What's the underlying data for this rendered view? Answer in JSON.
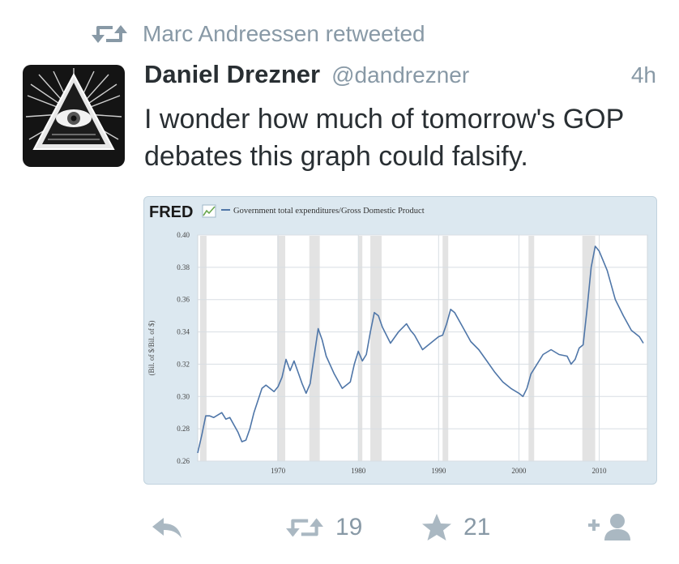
{
  "retweet_context": {
    "icon": "retweet-icon",
    "text": "Marc Andreessen retweeted"
  },
  "tweet": {
    "avatar_icon": "eye-pyramid-icon",
    "name": "Daniel Drezner",
    "handle": "@dandrezner",
    "time": "4h",
    "text": "I wonder how much of tomorrow's GOP debates this graph could falsify."
  },
  "chart": {
    "logo": "FRED",
    "legend": "Government total expenditures/Gross Domestic Product",
    "ylabel": "(Bil. of $/Bil. of $)",
    "line_color": "#4f76a8",
    "recession_color": "#e3e3e3"
  },
  "chart_data": {
    "type": "line",
    "title": "",
    "xlabel": "",
    "ylabel": "(Bil. of $/Bil. of $)",
    "xlim": [
      1960,
      2016
    ],
    "ylim": [
      0.26,
      0.4
    ],
    "x_ticks": [
      "1970",
      "1980",
      "1990",
      "2000",
      "2010"
    ],
    "y_ticks": [
      "0.40",
      "0.38",
      "0.36",
      "0.34",
      "0.32",
      "0.30",
      "0.28",
      "0.26"
    ],
    "grid": true,
    "legend_placement": "top-left",
    "recessions": [
      [
        1960.3,
        1961.1
      ],
      [
        1969.9,
        1970.9
      ],
      [
        1973.9,
        1975.2
      ],
      [
        1980.0,
        1980.5
      ],
      [
        1981.5,
        1982.9
      ],
      [
        1990.5,
        1991.2
      ],
      [
        2001.2,
        2001.9
      ],
      [
        2007.9,
        2009.5
      ]
    ],
    "series": [
      {
        "name": "Government total expenditures/Gross Domestic Product",
        "x": [
          1960.0,
          1960.5,
          1961.0,
          1961.5,
          1962.0,
          1963.0,
          1963.5,
          1964.0,
          1965.0,
          1965.5,
          1966.0,
          1966.5,
          1967.0,
          1968.0,
          1968.5,
          1969.0,
          1969.5,
          1970.0,
          1970.5,
          1971.0,
          1971.5,
          1972.0,
          1972.5,
          1973.0,
          1973.5,
          1974.0,
          1974.5,
          1975.0,
          1975.5,
          1976.0,
          1977.0,
          1978.0,
          1979.0,
          1979.5,
          1980.0,
          1980.5,
          1981.0,
          1981.5,
          1982.0,
          1982.5,
          1983.0,
          1984.0,
          1985.0,
          1986.0,
          1986.5,
          1987.0,
          1988.0,
          1989.0,
          1990.0,
          1990.5,
          1991.0,
          1991.5,
          1992.0,
          1993.0,
          1994.0,
          1995.0,
          1996.0,
          1997.0,
          1998.0,
          1999.0,
          2000.0,
          2000.5,
          2001.0,
          2001.5,
          2002.0,
          2003.0,
          2004.0,
          2005.0,
          2006.0,
          2006.5,
          2007.0,
          2007.5,
          2008.0,
          2008.5,
          2009.0,
          2009.5,
          2010.0,
          2010.5,
          2011.0,
          2012.0,
          2013.0,
          2014.0,
          2015.0,
          2015.5
        ],
        "y": [
          0.265,
          0.276,
          0.288,
          0.288,
          0.287,
          0.29,
          0.286,
          0.287,
          0.278,
          0.272,
          0.273,
          0.28,
          0.29,
          0.305,
          0.307,
          0.305,
          0.303,
          0.306,
          0.312,
          0.323,
          0.316,
          0.322,
          0.315,
          0.308,
          0.302,
          0.308,
          0.325,
          0.342,
          0.335,
          0.325,
          0.314,
          0.305,
          0.309,
          0.32,
          0.328,
          0.322,
          0.326,
          0.34,
          0.352,
          0.35,
          0.343,
          0.333,
          0.34,
          0.345,
          0.341,
          0.338,
          0.329,
          0.333,
          0.337,
          0.338,
          0.345,
          0.354,
          0.352,
          0.343,
          0.334,
          0.329,
          0.322,
          0.315,
          0.309,
          0.305,
          0.302,
          0.3,
          0.305,
          0.314,
          0.318,
          0.326,
          0.329,
          0.326,
          0.325,
          0.32,
          0.323,
          0.33,
          0.332,
          0.355,
          0.38,
          0.393,
          0.39,
          0.384,
          0.378,
          0.36,
          0.35,
          0.341,
          0.337,
          0.333
        ]
      }
    ]
  },
  "actions": {
    "reply_icon": "reply-icon",
    "retweet_icon": "retweet-icon",
    "retweet_count": "19",
    "favorite_icon": "star-icon",
    "favorite_count": "21",
    "follow_icon": "follow-icon"
  }
}
